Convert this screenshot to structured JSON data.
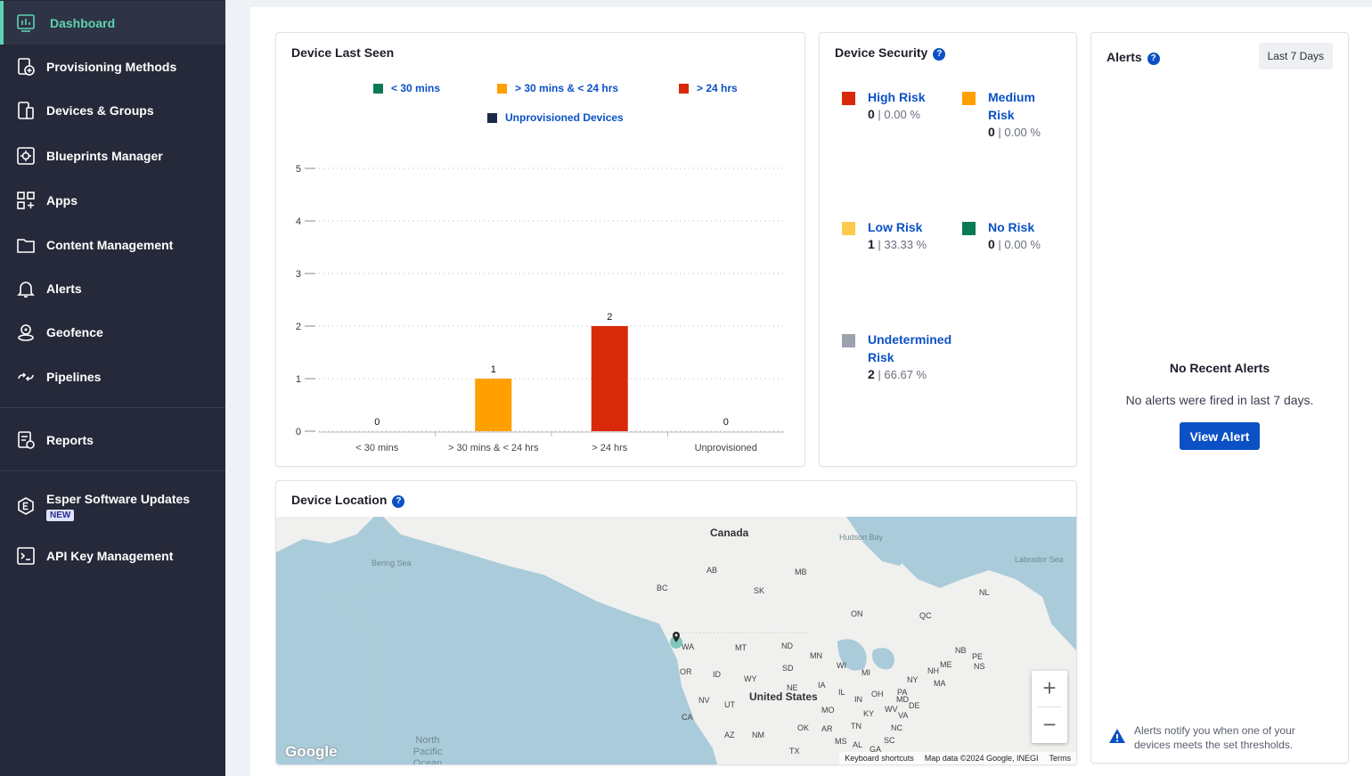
{
  "sidebar": {
    "items": [
      {
        "label": "Dashboard",
        "icon": "dashboard-icon"
      },
      {
        "label": "Provisioning Methods",
        "icon": "provisioning-icon"
      },
      {
        "label": "Devices & Groups",
        "icon": "devices-icon"
      },
      {
        "label": "Blueprints Manager",
        "icon": "blueprints-icon"
      },
      {
        "label": "Apps",
        "icon": "apps-icon"
      },
      {
        "label": "Content Management",
        "icon": "folder-icon"
      },
      {
        "label": "Alerts",
        "icon": "bell-icon"
      },
      {
        "label": "Geofence",
        "icon": "geofence-icon"
      },
      {
        "label": "Pipelines",
        "icon": "pipelines-icon"
      },
      {
        "label": "Reports",
        "icon": "reports-icon"
      },
      {
        "label": "Esper Software Updates",
        "icon": "esper-icon",
        "badge": "NEW"
      },
      {
        "label": "API Key Management",
        "icon": "terminal-icon"
      }
    ],
    "accent": "#5fd3b4"
  },
  "device_last_seen": {
    "title": "Device Last Seen",
    "legend": [
      {
        "label": "< 30 mins",
        "color": "#0a7a55"
      },
      {
        "label": "> 30 mins & < 24 hrs",
        "color": "#ff9f00"
      },
      {
        "label": "> 24 hrs",
        "color": "#d9290b"
      },
      {
        "label": "Unprovisioned Devices",
        "color": "#1c2a4a"
      }
    ]
  },
  "chart_data": {
    "type": "bar",
    "categories": [
      "< 30 mins",
      "> 30 mins & < 24 hrs",
      "> 24 hrs",
      "Unprovisioned"
    ],
    "values": [
      0,
      1,
      2,
      0
    ],
    "colors": [
      "#0a7a55",
      "#ff9f00",
      "#d9290b",
      "#1c2a4a"
    ],
    "ylim": [
      0,
      5
    ],
    "yticks": [
      0,
      1,
      2,
      3,
      4,
      5
    ],
    "grid": true,
    "legend_position": "top"
  },
  "device_security": {
    "title": "Device Security",
    "risks": [
      {
        "label": "High Risk",
        "count": "0",
        "percent": "| 0.00 %",
        "color": "#d9290b"
      },
      {
        "label": "Medium Risk",
        "count": "0",
        "percent": "| 0.00 %",
        "color": "#ff9f00"
      },
      {
        "label": "Low Risk",
        "count": "1",
        "percent": "| 33.33 %",
        "color": "#ffc94d"
      },
      {
        "label": "No Risk",
        "count": "0",
        "percent": "| 0.00 %",
        "color": "#0a7a55"
      },
      {
        "label": "Undetermined Risk",
        "count": "2",
        "percent": "| 66.67 %",
        "color": "#9aa3ae"
      }
    ]
  },
  "alerts": {
    "title": "Alerts",
    "range_label": "Last 7 Days",
    "empty_title": "No Recent Alerts",
    "empty_text": "No alerts were fired in last 7 days.",
    "view_button": "View Alert",
    "note": "Alerts notify you when one of your devices meets the set thresholds."
  },
  "device_location": {
    "title": "Device Location",
    "labels": {
      "canada": "Canada",
      "us": "United States",
      "hudson": "Hudson Bay",
      "labrador": "Labrador Sea",
      "bering": "Bering Sea",
      "pacific": "North Pacific Ocean",
      "states": [
        "AB",
        "MB",
        "BC",
        "SK",
        "ON",
        "QC",
        "NL",
        "WA",
        "MT",
        "ND",
        "MN",
        "OR",
        "ID",
        "WY",
        "SD",
        "WI",
        "MI",
        "NY",
        "NB",
        "PE",
        "NS",
        "ME",
        "NH",
        "MA",
        "NE",
        "IA",
        "IL",
        "IN",
        "OH",
        "PA",
        "NV",
        "UT",
        "CA",
        "MO",
        "KY",
        "WV",
        "VA",
        "MD",
        "DE",
        "OK",
        "AR",
        "TN",
        "NC",
        "AZ",
        "NM",
        "TX",
        "MS",
        "AL",
        "GA",
        "SC"
      ]
    },
    "zoom_in": "+",
    "zoom_out": "−",
    "footer": {
      "shortcuts": "Keyboard shortcuts",
      "mapdata": "Map data ©2024 Google, INEGI",
      "terms": "Terms"
    },
    "google": "Google"
  }
}
